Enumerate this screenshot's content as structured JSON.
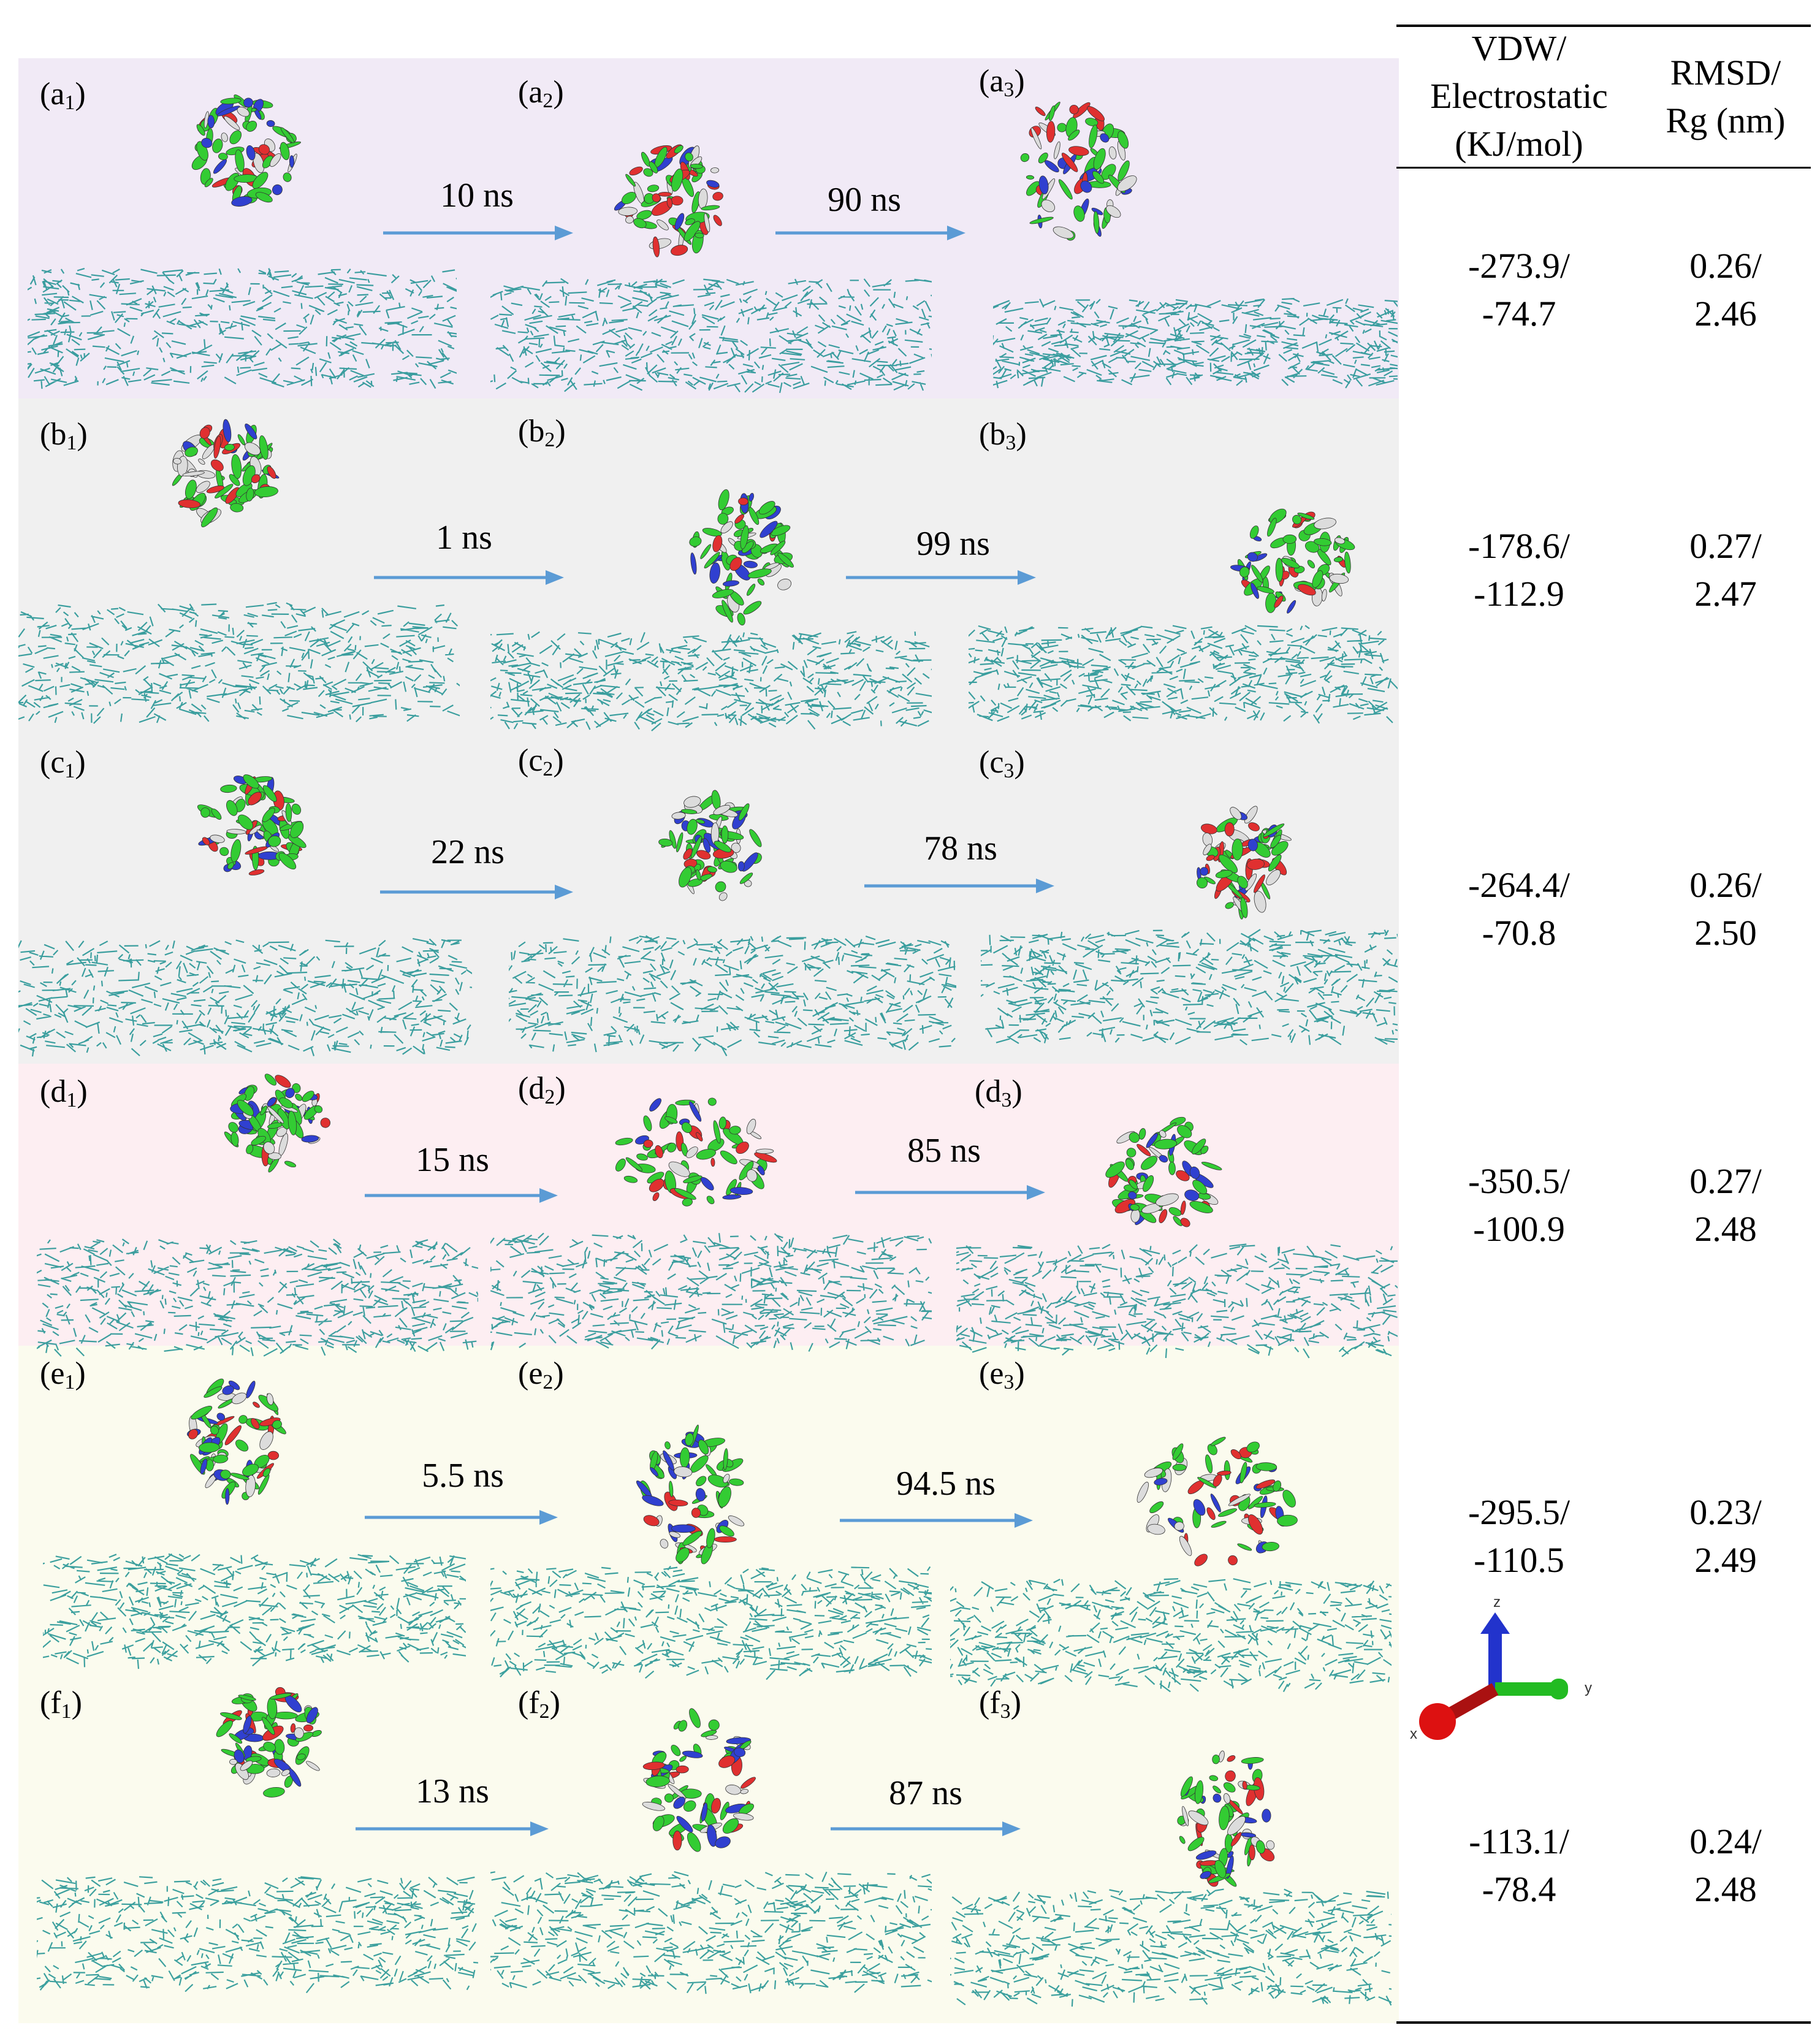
{
  "colors": {
    "row_a": "#f1eaf6",
    "row_bc": "#f0f0f0",
    "row_d": "#fdeef2",
    "row_ef": "#fbfbee",
    "membrane": "#1a8f8f",
    "arrow": "#5b9bd5",
    "helix_green": "#33cc33",
    "helix_red": "#e03030",
    "helix_blue": "#3040d0",
    "helix_white": "#dcdcdc"
  },
  "table": {
    "header_col1": [
      "VDW/",
      "Electrostatic",
      "(KJ/mol)"
    ],
    "header_col2": [
      "RMSD/",
      "Rg (nm)"
    ]
  },
  "rows": [
    {
      "labels": [
        {
          "letter": "a",
          "sub": "1"
        },
        {
          "letter": "a",
          "sub": "2"
        },
        {
          "letter": "a",
          "sub": "3"
        }
      ],
      "arrows": [
        "10 ns",
        "90 ns"
      ],
      "vdw_elec": [
        "-273.9/",
        "-74.7"
      ],
      "rmsd_rg": [
        "0.26/",
        "2.46"
      ]
    },
    {
      "labels": [
        {
          "letter": "b",
          "sub": "1"
        },
        {
          "letter": "b",
          "sub": "2"
        },
        {
          "letter": "b",
          "sub": "3"
        }
      ],
      "arrows": [
        "1 ns",
        "99 ns"
      ],
      "vdw_elec": [
        "-178.6/",
        "-112.9"
      ],
      "rmsd_rg": [
        "0.27/",
        "2.47"
      ]
    },
    {
      "labels": [
        {
          "letter": "c",
          "sub": "1"
        },
        {
          "letter": "c",
          "sub": "2"
        },
        {
          "letter": "c",
          "sub": "3"
        }
      ],
      "arrows": [
        "22 ns",
        "78 ns"
      ],
      "vdw_elec": [
        "-264.4/",
        "-70.8"
      ],
      "rmsd_rg": [
        "0.26/",
        "2.50"
      ]
    },
    {
      "labels": [
        {
          "letter": "d",
          "sub": "1"
        },
        {
          "letter": "d",
          "sub": "2"
        },
        {
          "letter": "d",
          "sub": "3"
        }
      ],
      "arrows": [
        "15 ns",
        "85 ns"
      ],
      "vdw_elec": [
        "-350.5/",
        "-100.9"
      ],
      "rmsd_rg": [
        "0.27/",
        "2.48"
      ]
    },
    {
      "labels": [
        {
          "letter": "e",
          "sub": "1"
        },
        {
          "letter": "e",
          "sub": "2"
        },
        {
          "letter": "e",
          "sub": "3"
        }
      ],
      "arrows": [
        "5.5 ns",
        "94.5 ns"
      ],
      "vdw_elec": [
        "-295.5/",
        "-110.5"
      ],
      "rmsd_rg": [
        "0.23/",
        "2.49"
      ]
    },
    {
      "labels": [
        {
          "letter": "f",
          "sub": "1"
        },
        {
          "letter": "f",
          "sub": "2"
        },
        {
          "letter": "f",
          "sub": "3"
        }
      ],
      "arrows": [
        "13 ns",
        "87 ns"
      ],
      "vdw_elec": [
        "-113.1/",
        "-78.4"
      ],
      "rmsd_rg": [
        "0.24/",
        "2.48"
      ]
    }
  ],
  "axes_legend": {
    "x": "x",
    "y": "y",
    "z": "z"
  }
}
